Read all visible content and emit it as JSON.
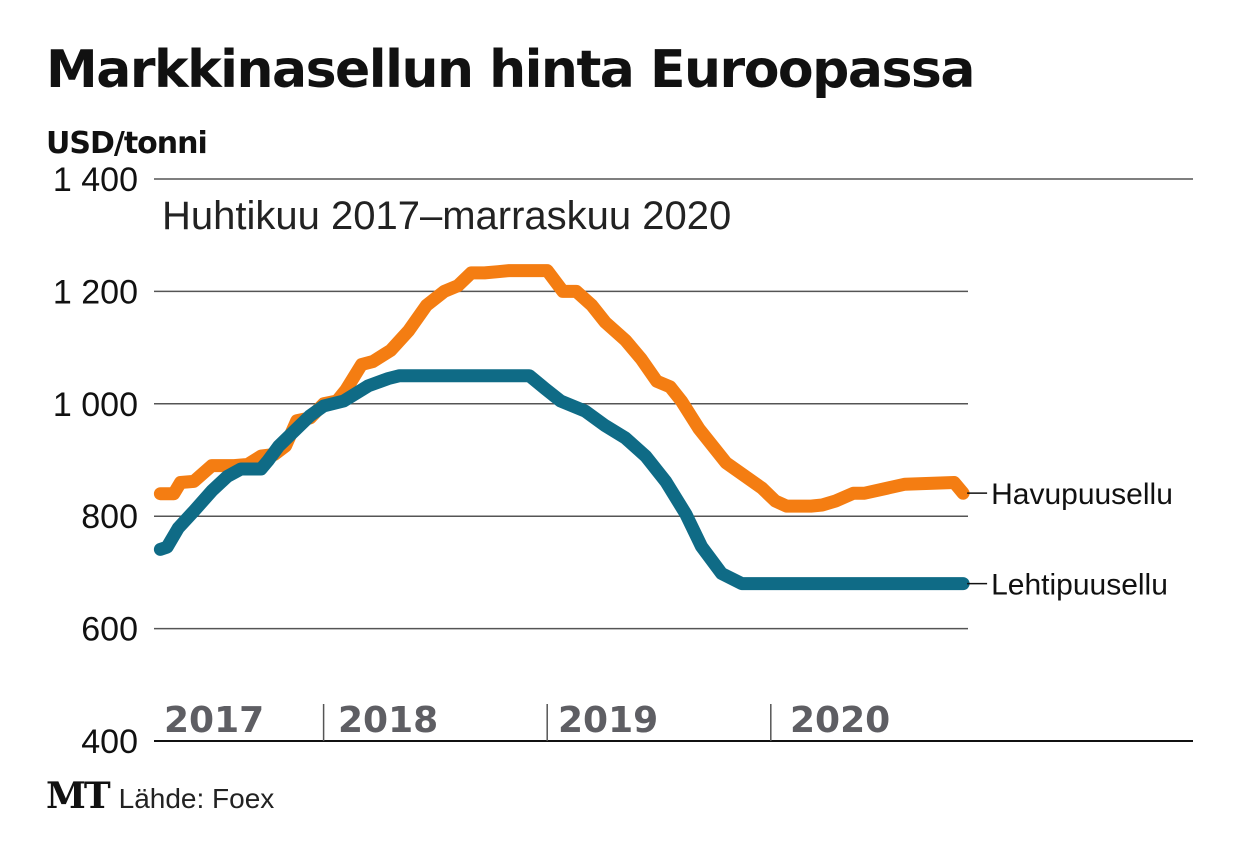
{
  "header": {
    "title": "Markkinasellun hinta Euroopassa",
    "unit": "USD/tonni"
  },
  "footer": {
    "logo": "MT",
    "source": "Lähde: Foex"
  },
  "chart_data": {
    "type": "line",
    "title": "Markkinasellun hinta Euroopassa",
    "subtitle": "Huhtikuu 2017–marraskuu 2020",
    "ylabel": "USD/tonni",
    "xlabel": "",
    "ylim": [
      400,
      1400
    ],
    "yticks": [
      400,
      600,
      800,
      1000,
      1200,
      1400
    ],
    "ytick_labels": [
      "400",
      "600",
      "800",
      "1 000",
      "1 200",
      "1 400"
    ],
    "xlim_years": [
      2017.25,
      2020.92
    ],
    "xtick_labels": [
      "2017",
      "2018",
      "2019",
      "2020"
    ],
    "x_dividers": [
      2018,
      2019,
      2020
    ],
    "grid": true,
    "legend": "inline-right",
    "series": [
      {
        "name": "Havupuusellu",
        "color": "#f47d12",
        "x": [
          2017.27,
          2017.33,
          2017.36,
          2017.42,
          2017.5,
          2017.6,
          2017.66,
          2017.72,
          2017.78,
          2017.83,
          2017.88,
          2017.94,
          2018.0,
          2018.06,
          2018.1,
          2018.17,
          2018.22,
          2018.3,
          2018.38,
          2018.46,
          2018.54,
          2018.6,
          2018.66,
          2018.72,
          2018.78,
          2018.83,
          2018.88,
          2018.95,
          2019.0,
          2019.07,
          2019.13,
          2019.2,
          2019.26,
          2019.35,
          2019.42,
          2019.49,
          2019.55,
          2019.6,
          2019.68,
          2019.8,
          2019.96,
          2020.02,
          2020.07,
          2020.18,
          2020.23,
          2020.29,
          2020.37,
          2020.42,
          2020.6,
          2020.82,
          2020.86
        ],
        "values": [
          840,
          840,
          860,
          862,
          890,
          890,
          892,
          907,
          910,
          925,
          970,
          975,
          1000,
          1005,
          1025,
          1070,
          1075,
          1095,
          1130,
          1175,
          1200,
          1210,
          1233,
          1233,
          1235,
          1237,
          1237,
          1237,
          1237,
          1200,
          1200,
          1175,
          1145,
          1113,
          1080,
          1040,
          1030,
          1005,
          955,
          895,
          850,
          827,
          818,
          818,
          820,
          827,
          841,
          841,
          857,
          860,
          841
        ]
      },
      {
        "name": "Lehtipuusellu",
        "color": "#0f6b86",
        "x": [
          2017.27,
          2017.3,
          2017.35,
          2017.42,
          2017.5,
          2017.57,
          2017.63,
          2017.72,
          2017.75,
          2017.8,
          2017.87,
          2017.94,
          2018.0,
          2018.09,
          2018.2,
          2018.29,
          2018.34,
          2018.5,
          2018.7,
          2018.9,
          2018.92,
          2018.99,
          2019.06,
          2019.17,
          2019.26,
          2019.35,
          2019.44,
          2019.53,
          2019.62,
          2019.69,
          2019.78,
          2019.87,
          2019.96,
          2020.2,
          2020.5,
          2020.86
        ],
        "values": [
          741,
          745,
          779,
          809,
          845,
          871,
          884,
          884,
          898,
          925,
          952,
          979,
          996,
          1005,
          1032,
          1045,
          1050,
          1050,
          1050,
          1050,
          1050,
          1027,
          1005,
          987,
          961,
          939,
          907,
          862,
          804,
          746,
          698,
          680,
          680,
          680,
          680,
          680
        ]
      }
    ]
  }
}
